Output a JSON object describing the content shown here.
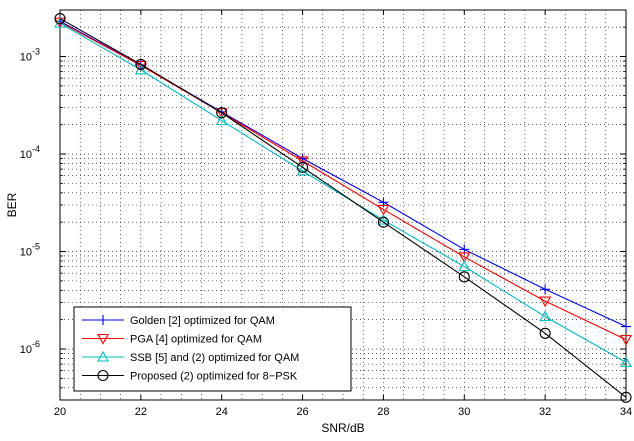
{
  "chart_data": {
    "type": "line",
    "title": "",
    "xlabel": "SNR/dB",
    "ylabel": "BER",
    "xlim": [
      20,
      34
    ],
    "ylim": [
      3e-07,
      0.003
    ],
    "yscale": "log",
    "grid": true,
    "legend_position": "bottom-left",
    "x_ticks": [
      20,
      22,
      24,
      26,
      28,
      30,
      32,
      34
    ],
    "x_tick_labels": [
      "20",
      "22",
      "24",
      "26",
      "28",
      "30",
      "32",
      "34"
    ],
    "y_ticks": [
      {
        "value": 1e-06,
        "base": "10",
        "exp": "-6"
      },
      {
        "value": 1e-05,
        "base": "10",
        "exp": "-5"
      },
      {
        "value": 0.0001,
        "base": "10",
        "exp": "-4"
      },
      {
        "value": 0.001,
        "base": "10",
        "exp": "-3"
      }
    ],
    "x": [
      20,
      22,
      24,
      26,
      28,
      30,
      32,
      34
    ],
    "series": [
      {
        "name": "Golden [2] optimized for QAM",
        "color": "#0000ff",
        "marker": "plus",
        "values": [
          0.0023,
          0.00082,
          0.00027,
          9e-05,
          3.2e-05,
          1.05e-05,
          4.1e-06,
          1.7e-06
        ]
      },
      {
        "name": "PGA [4] optimized for QAM",
        "color": "#ff0000",
        "marker": "triangle-down",
        "values": [
          0.00225,
          0.00081,
          0.000265,
          8.5e-05,
          2.7e-05,
          8.8e-06,
          3.1e-06,
          1.25e-06
        ]
      },
      {
        "name": "SSB [5] and (2) optimized for QAM",
        "color": "#00c0c0",
        "marker": "triangle-up",
        "values": [
          0.0022,
          0.00073,
          0.00022,
          6.7e-05,
          2.1e-05,
          7e-06,
          2.15e-06,
          7.3e-07
        ]
      },
      {
        "name": "Proposed (2) optimized for 8−PSK",
        "color": "#000000",
        "marker": "circle",
        "values": [
          0.00245,
          0.00083,
          0.000265,
          7.3e-05,
          2e-05,
          5.5e-06,
          1.45e-06,
          3.2e-07
        ]
      }
    ]
  }
}
